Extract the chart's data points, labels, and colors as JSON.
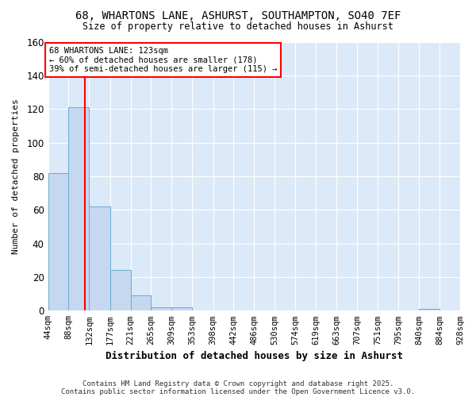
{
  "title1": "68, WHARTONS LANE, ASHURST, SOUTHAMPTON, SO40 7EF",
  "title2": "Size of property relative to detached houses in Ashurst",
  "xlabel": "Distribution of detached houses by size in Ashurst",
  "ylabel": "Number of detached properties",
  "bins": [
    44,
    88,
    132,
    177,
    221,
    265,
    309,
    353,
    398,
    442,
    486,
    530,
    574,
    619,
    663,
    707,
    751,
    795,
    840,
    884,
    928
  ],
  "bin_labels": [
    "44sqm",
    "88sqm",
    "132sqm",
    "177sqm",
    "221sqm",
    "265sqm",
    "309sqm",
    "353sqm",
    "398sqm",
    "442sqm",
    "486sqm",
    "530sqm",
    "574sqm",
    "619sqm",
    "663sqm",
    "707sqm",
    "751sqm",
    "795sqm",
    "840sqm",
    "884sqm",
    "928sqm"
  ],
  "counts": [
    82,
    121,
    62,
    24,
    9,
    2,
    2,
    0,
    0,
    0,
    0,
    0,
    0,
    0,
    0,
    0,
    0,
    0,
    1,
    0,
    0
  ],
  "bar_color": "#c5d8f0",
  "bar_edge_color": "#6aaad4",
  "red_line_x": 123,
  "ylim": [
    0,
    160
  ],
  "yticks": [
    0,
    20,
    40,
    60,
    80,
    100,
    120,
    140,
    160
  ],
  "plot_bg_color": "#dce9f8",
  "fig_bg_color": "#ffffff",
  "grid_color": "#ffffff",
  "annotation_text": "68 WHARTONS LANE: 123sqm\n← 60% of detached houses are smaller (178)\n39% of semi-detached houses are larger (115) →",
  "footnote1": "Contains HM Land Registry data © Crown copyright and database right 2025.",
  "footnote2": "Contains public sector information licensed under the Open Government Licence v3.0."
}
